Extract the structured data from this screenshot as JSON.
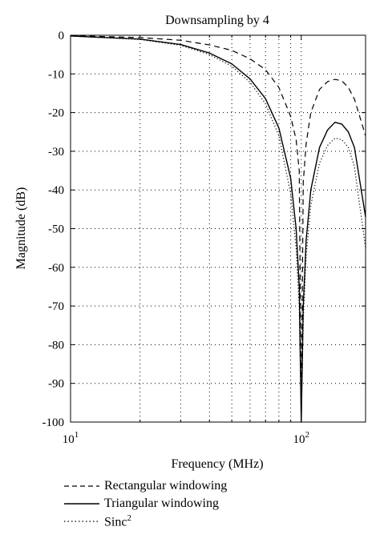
{
  "chart_data": {
    "type": "line",
    "title": "Downsampling by 4",
    "xlabel": "Frequency (MHz)",
    "ylabel": "Magnitude (dB)",
    "xscale": "log",
    "xlim": [
      10,
      190
    ],
    "ylim": [
      -100,
      0
    ],
    "x_ticks": [
      {
        "value": 10,
        "base": "10",
        "exp": "1"
      },
      {
        "value": 100,
        "base": "10",
        "exp": "2"
      }
    ],
    "y_ticks": [
      0,
      -10,
      -20,
      -30,
      -40,
      -50,
      -60,
      -70,
      -80,
      -90,
      -100
    ],
    "grid": true,
    "legend_placement": "below",
    "series": [
      {
        "name": "Rectangular windowing",
        "style": "dashed",
        "x": [
          10,
          20,
          30,
          40,
          50,
          60,
          70,
          80,
          90,
          95,
          98,
          100,
          102,
          105,
          110,
          120,
          130,
          140,
          150,
          160,
          170,
          190
        ],
        "values": [
          -0.1,
          -0.6,
          -1.3,
          -2.5,
          -3.9,
          -6.1,
          -8.9,
          -13.5,
          -21,
          -27,
          -35,
          -100,
          -38,
          -28,
          -20,
          -14,
          -12,
          -11.4,
          -11.8,
          -13.5,
          -16.5,
          -26
        ]
      },
      {
        "name": "Triangular windowing",
        "style": "solid",
        "x": [
          10,
          20,
          30,
          40,
          50,
          60,
          70,
          80,
          90,
          95,
          98,
          100,
          102,
          105,
          110,
          120,
          130,
          140,
          150,
          160,
          170,
          190
        ],
        "values": [
          -0.2,
          -1.0,
          -2.4,
          -4.6,
          -7.4,
          -11.3,
          -16.4,
          -24,
          -37,
          -50,
          -65,
          -100,
          -70,
          -53,
          -40,
          -29,
          -24.5,
          -22.5,
          -23,
          -25,
          -29,
          -47
        ]
      },
      {
        "name": "Sinc2",
        "style": "dotted",
        "x": [
          10,
          20,
          30,
          40,
          50,
          60,
          70,
          80,
          90,
          95,
          98,
          100,
          102,
          105,
          110,
          120,
          130,
          140,
          150,
          160,
          170,
          190
        ],
        "values": [
          -0.2,
          -1.1,
          -2.6,
          -5.0,
          -8.0,
          -12.2,
          -17.7,
          -26,
          -41,
          -55,
          -70,
          -100,
          -74,
          -57,
          -44,
          -33,
          -28.5,
          -26.6,
          -27,
          -29,
          -34,
          -55
        ]
      }
    ]
  },
  "legend": {
    "items": [
      {
        "label": "Rectangular windowing",
        "style": "dashed"
      },
      {
        "label": "Triangular windowing",
        "style": "solid"
      },
      {
        "label": "Sinc",
        "sup": "2",
        "style": "dotted"
      }
    ]
  }
}
